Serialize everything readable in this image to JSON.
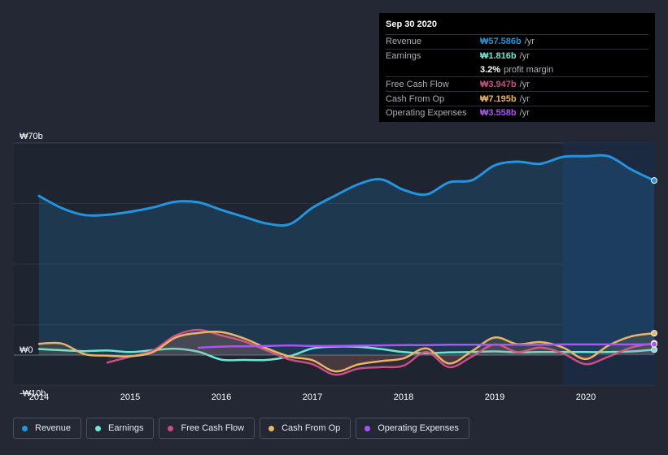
{
  "tooltip": {
    "date": "Sep 30 2020",
    "rows": [
      {
        "label": "Revenue",
        "value": "₩57.586b",
        "unit": "/yr",
        "color": "#2394df"
      },
      {
        "label": "Earnings",
        "value": "₩1.816b",
        "unit": "/yr",
        "color": "#6ee7d4"
      },
      {
        "label": "",
        "value": "3.2%",
        "unit": "profit margin",
        "color": "#ffffff"
      },
      {
        "label": "Free Cash Flow",
        "value": "₩3.947b",
        "unit": "/yr",
        "color": "#c94e86"
      },
      {
        "label": "Cash From Op",
        "value": "₩7.195b",
        "unit": "/yr",
        "color": "#e9b465"
      },
      {
        "label": "Operating Expenses",
        "value": "₩3.558b",
        "unit": "/yr",
        "color": "#a855f7"
      }
    ]
  },
  "legend": [
    {
      "label": "Revenue",
      "color": "#2394df"
    },
    {
      "label": "Earnings",
      "color": "#6ee7d4"
    },
    {
      "label": "Free Cash Flow",
      "color": "#c94e86"
    },
    {
      "label": "Cash From Op",
      "color": "#e9b465"
    },
    {
      "label": "Operating Expenses",
      "color": "#a855f7"
    }
  ],
  "chart_data": {
    "type": "line",
    "title": "",
    "xlabel": "",
    "ylabel": "",
    "ylim": [
      -10,
      70
    ],
    "xlim": [
      2013.95,
      2020.76
    ],
    "y_tick_labels": [
      {
        "value": 70,
        "label": "₩70b"
      },
      {
        "value": 0,
        "label": "₩0"
      },
      {
        "value": -10,
        "label": "-₩10b"
      }
    ],
    "x_tick_labels": [
      "2014",
      "2015",
      "2016",
      "2017",
      "2018",
      "2019",
      "2020"
    ],
    "x_ticks": [
      2014,
      2015,
      2016,
      2017,
      2018,
      2019,
      2020
    ],
    "future_region_start": 2019.75,
    "series": [
      {
        "name": "Revenue",
        "color": "#2394df",
        "fill": true,
        "x": [
          2014.0,
          2014.25,
          2014.5,
          2014.75,
          2015.0,
          2015.25,
          2015.5,
          2015.75,
          2016.0,
          2016.25,
          2016.5,
          2016.75,
          2017.0,
          2017.25,
          2017.5,
          2017.75,
          2018.0,
          2018.25,
          2018.5,
          2018.75,
          2019.0,
          2019.25,
          2019.5,
          2019.75,
          2020.0,
          2020.25,
          2020.5,
          2020.75
        ],
        "values": [
          52.5,
          48.5,
          46.2,
          46.3,
          47.3,
          48.7,
          50.6,
          50.4,
          47.9,
          45.6,
          43.4,
          43.2,
          48.6,
          52.6,
          56.3,
          58.0,
          54.5,
          53.0,
          57.0,
          57.7,
          62.6,
          63.8,
          63.1,
          65.4,
          65.6,
          65.6,
          61.2,
          57.6
        ]
      },
      {
        "name": "Earnings",
        "color": "#6ee7d4",
        "x": [
          2014.0,
          2014.25,
          2014.5,
          2014.75,
          2015.0,
          2015.25,
          2015.5,
          2015.75,
          2016.0,
          2016.25,
          2016.5,
          2016.75,
          2017.0,
          2017.25,
          2017.5,
          2017.75,
          2018.0,
          2018.25,
          2018.5,
          2018.75,
          2019.0,
          2019.25,
          2019.5,
          2019.75,
          2020.0,
          2020.25,
          2020.5,
          2020.75
        ],
        "values": [
          2.0,
          1.6,
          1.3,
          1.5,
          1.0,
          1.6,
          2.1,
          1.1,
          -1.5,
          -1.6,
          -1.6,
          -0.4,
          2.2,
          2.8,
          2.7,
          2.0,
          1.0,
          0.6,
          0.9,
          1.0,
          1.2,
          0.9,
          1.0,
          1.0,
          1.0,
          1.0,
          1.2,
          1.8
        ]
      },
      {
        "name": "Free Cash Flow",
        "color": "#c94e86",
        "x": [
          2014.75,
          2015.0,
          2015.25,
          2015.5,
          2015.75,
          2016.0,
          2016.25,
          2016.5,
          2016.75,
          2017.0,
          2017.25,
          2017.5,
          2017.75,
          2018.0,
          2018.25,
          2018.5,
          2018.75,
          2019.0,
          2019.25,
          2019.5,
          2019.75,
          2020.0,
          2020.25,
          2020.5,
          2020.75
        ],
        "values": [
          -2.5,
          -0.5,
          1.5,
          6.5,
          8.3,
          6.5,
          4.5,
          1.5,
          -1.5,
          -3.0,
          -6.5,
          -4.5,
          -4.0,
          -3.5,
          1.0,
          -4.0,
          -0.5,
          3.5,
          1.0,
          2.5,
          0.5,
          -3.0,
          -0.5,
          2.5,
          3.9
        ]
      },
      {
        "name": "Cash From Op",
        "color": "#e9b465",
        "x": [
          2014.0,
          2014.25,
          2014.5,
          2014.75,
          2015.0,
          2015.25,
          2015.5,
          2015.75,
          2016.0,
          2016.25,
          2016.5,
          2016.75,
          2017.0,
          2017.25,
          2017.5,
          2017.75,
          2018.0,
          2018.25,
          2018.5,
          2018.75,
          2019.0,
          2019.25,
          2019.5,
          2019.75,
          2020.0,
          2020.25,
          2020.5,
          2020.75
        ],
        "values": [
          3.7,
          3.8,
          0.3,
          -0.2,
          -0.4,
          1.0,
          5.8,
          7.3,
          7.6,
          5.5,
          2.2,
          -0.5,
          -1.7,
          -5.4,
          -3.1,
          -2.0,
          -1.1,
          2.2,
          -2.8,
          1.3,
          5.8,
          3.6,
          4.3,
          2.5,
          -1.3,
          3.2,
          6.2,
          7.2
        ]
      },
      {
        "name": "Operating Expenses",
        "color": "#a855f7",
        "x": [
          2015.75,
          2016.0,
          2016.25,
          2016.5,
          2016.75,
          2017.0,
          2017.25,
          2017.5,
          2017.75,
          2018.0,
          2018.25,
          2018.5,
          2018.75,
          2019.0,
          2019.25,
          2019.5,
          2019.75,
          2020.0,
          2020.25,
          2020.5,
          2020.75
        ],
        "values": [
          2.4,
          2.8,
          2.9,
          3.0,
          3.2,
          3.0,
          3.0,
          3.1,
          3.2,
          3.3,
          3.3,
          3.4,
          3.4,
          3.4,
          3.4,
          3.4,
          3.5,
          3.5,
          3.5,
          3.5,
          3.6
        ]
      }
    ]
  }
}
